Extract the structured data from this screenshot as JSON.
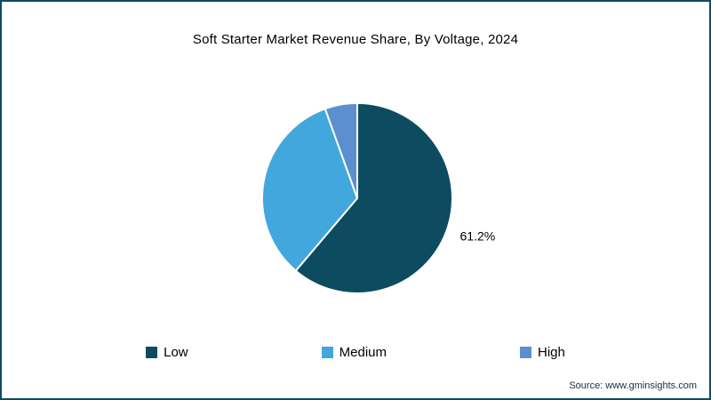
{
  "page": {
    "border_color": "#0d4c60",
    "background_color": "#ffffff",
    "source": "Source: www.gminsights.com"
  },
  "chart_data": {
    "type": "pie",
    "title": "Soft Starter Market Revenue Share, By Voltage, 2024",
    "categories": [
      "Low",
      "Medium",
      "High"
    ],
    "values": [
      61.2,
      33.3,
      5.5
    ],
    "colors": [
      "#0d4c60",
      "#41a7dc",
      "#5b8fd0"
    ],
    "data_labels": [
      "61.2%",
      null,
      null
    ],
    "start_angle_deg": 0,
    "direction": "clockwise",
    "legend_position": "bottom",
    "slice_border_color": "#ffffff"
  }
}
